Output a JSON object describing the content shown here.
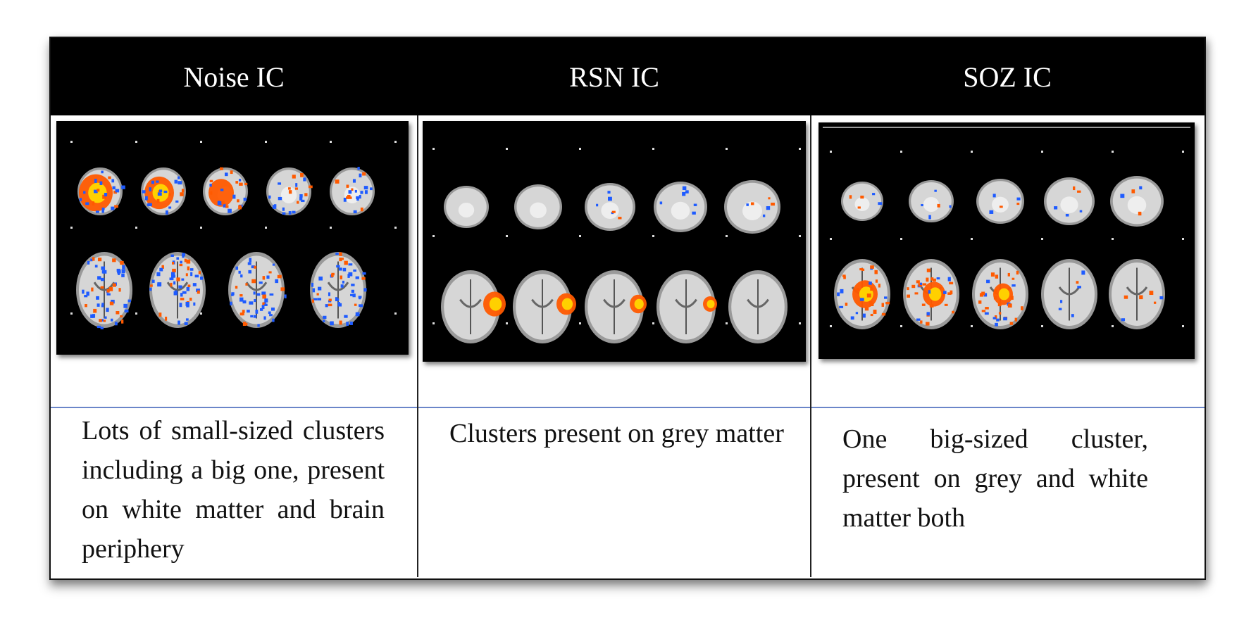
{
  "columns": [
    {
      "header": "Noise IC",
      "description": "Lots of small-sized clusters including a big one, present on white matter and brain periphery",
      "figure": "noise-ic-brain-slices"
    },
    {
      "header": "RSN IC",
      "description": "Clusters present on grey matter",
      "figure": "rsn-ic-brain-slices"
    },
    {
      "header": "SOZ IC",
      "description": "One big-sized cluster, present on grey and white matter both",
      "figure": "soz-ic-brain-slices"
    }
  ],
  "colors": {
    "header_bg": "#000000",
    "header_text": "#ffffff",
    "activation_hot": "#ff5a00",
    "activation_core": "#ffd000",
    "activation_cold": "#1e5bff",
    "row_divider": "#6b86c9"
  }
}
